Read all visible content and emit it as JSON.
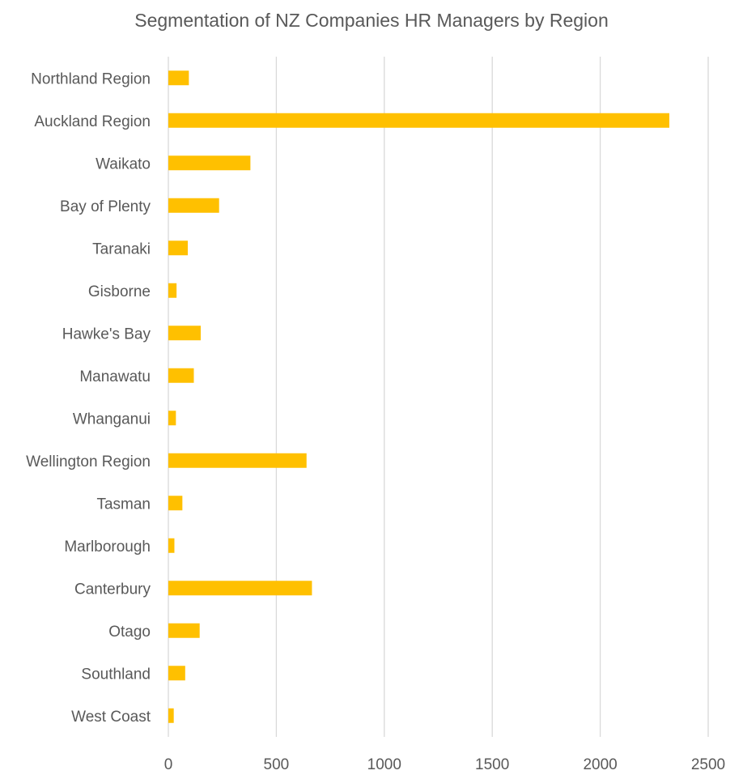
{
  "chart_data": {
    "type": "bar",
    "orientation": "horizontal",
    "title": "Segmentation of NZ Companies HR Managers by Region",
    "xlabel": "",
    "ylabel": "",
    "xlim": [
      0,
      2500
    ],
    "x_ticks": [
      "0",
      "500",
      "1000",
      "1500",
      "2000",
      "2500"
    ],
    "grid": "vertical",
    "bar_color": "#FFC000",
    "categories": [
      "Northland Region",
      "Auckland Region",
      "Waikato",
      "Bay of Plenty",
      "Taranaki",
      "Gisborne",
      "Hawke's Bay",
      "Manawatu",
      "Whanganui",
      "Wellington Region",
      "Tasman",
      "Marlborough",
      "Canterbury",
      "Otago",
      "Southland",
      "West Coast"
    ],
    "values": [
      95,
      2320,
      380,
      235,
      90,
      38,
      150,
      118,
      35,
      640,
      65,
      28,
      665,
      145,
      78,
      25
    ]
  }
}
